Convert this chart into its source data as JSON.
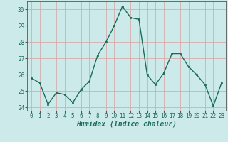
{
  "x": [
    0,
    1,
    2,
    3,
    4,
    5,
    6,
    7,
    8,
    9,
    10,
    11,
    12,
    13,
    14,
    15,
    16,
    17,
    18,
    19,
    20,
    21,
    22,
    23
  ],
  "y": [
    25.8,
    25.5,
    24.2,
    24.9,
    24.8,
    24.3,
    25.1,
    25.6,
    27.2,
    28.0,
    29.0,
    30.2,
    29.5,
    29.4,
    26.0,
    25.4,
    26.1,
    27.3,
    27.3,
    26.5,
    26.0,
    25.4,
    24.1,
    25.5
  ],
  "line_color": "#1a6b5a",
  "marker": "s",
  "markersize": 2,
  "linewidth": 1.0,
  "xlabel": "Humidex (Indice chaleur)",
  "xlim": [
    -0.5,
    23.5
  ],
  "ylim": [
    23.8,
    30.5
  ],
  "yticks": [
    24,
    25,
    26,
    27,
    28,
    29,
    30
  ],
  "xticks": [
    0,
    1,
    2,
    3,
    4,
    5,
    6,
    7,
    8,
    9,
    10,
    11,
    12,
    13,
    14,
    15,
    16,
    17,
    18,
    19,
    20,
    21,
    22,
    23
  ],
  "bg_color": "#cceaea",
  "grid_color": "#d9a0a0",
  "tick_fontsize": 5.5,
  "xlabel_fontsize": 7.0
}
